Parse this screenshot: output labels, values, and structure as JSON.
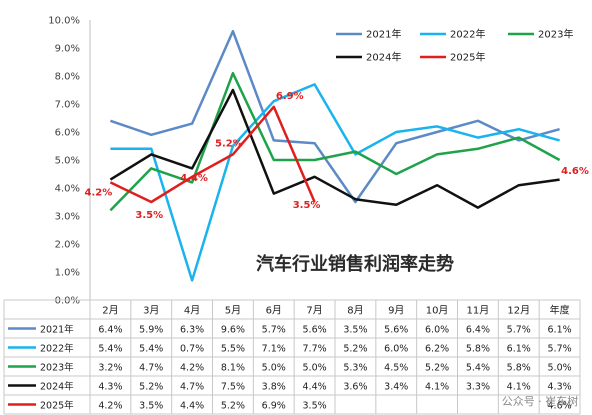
{
  "chart_data": {
    "type": "line",
    "title": "汽车行业销售利润率走势",
    "categories": [
      "2月",
      "3月",
      "4月",
      "5月",
      "6月",
      "7月",
      "8月",
      "9月",
      "10月",
      "11月",
      "12月",
      "年度"
    ],
    "ylim": [
      0,
      10
    ],
    "yticks": [
      "0.0%",
      "1.0%",
      "2.0%",
      "3.0%",
      "4.0%",
      "5.0%",
      "6.0%",
      "7.0%",
      "8.0%",
      "9.0%",
      "10.0%"
    ],
    "grid": false,
    "legend_position": "top-right",
    "series": [
      {
        "name": "2021年",
        "color": "#5b8ac7",
        "values": [
          6.4,
          5.9,
          6.3,
          9.6,
          5.7,
          5.6,
          3.5,
          5.6,
          6.0,
          6.4,
          5.7,
          6.1
        ],
        "labels": [
          "6.4%",
          "5.9%",
          "6.3%",
          "9.6%",
          "5.7%",
          "5.6%",
          "3.5%",
          "5.6%",
          "6.0%",
          "6.4%",
          "5.7%",
          "6.1%"
        ]
      },
      {
        "name": "2022年",
        "color": "#19b3ef",
        "values": [
          5.4,
          5.4,
          0.7,
          5.5,
          7.1,
          7.7,
          5.2,
          6.0,
          6.2,
          5.8,
          6.1,
          5.7
        ],
        "labels": [
          "5.4%",
          "5.4%",
          "0.7%",
          "5.5%",
          "7.1%",
          "7.7%",
          "5.2%",
          "6.0%",
          "6.2%",
          "5.8%",
          "6.1%",
          "5.7%"
        ]
      },
      {
        "name": "2023年",
        "color": "#1fa34a",
        "values": [
          3.2,
          4.7,
          4.2,
          8.1,
          5.0,
          5.0,
          5.3,
          4.5,
          5.2,
          5.4,
          5.8,
          5.0
        ],
        "labels": [
          "3.2%",
          "4.7%",
          "4.2%",
          "8.1%",
          "5.0%",
          "5.0%",
          "5.3%",
          "4.5%",
          "5.2%",
          "5.4%",
          "5.8%",
          "5.0%"
        ]
      },
      {
        "name": "2024年",
        "color": "#111111",
        "values": [
          4.3,
          5.2,
          4.7,
          7.5,
          3.8,
          4.4,
          3.6,
          3.4,
          4.1,
          3.3,
          4.1,
          4.3
        ],
        "labels": [
          "4.3%",
          "5.2%",
          "4.7%",
          "7.5%",
          "3.8%",
          "4.4%",
          "3.6%",
          "3.4%",
          "4.1%",
          "3.3%",
          "4.1%",
          "4.3%"
        ]
      },
      {
        "name": "2025年",
        "color": "#e01e1e",
        "values": [
          4.2,
          3.5,
          4.4,
          5.2,
          6.9,
          3.5,
          null,
          null,
          null,
          null,
          null,
          4.6
        ],
        "labels": [
          "4.2%",
          "3.5%",
          "4.4%",
          "5.2%",
          "6.9%",
          "3.5%",
          "",
          "",
          "",
          "",
          "",
          "4.6%"
        ]
      }
    ],
    "annotations": [
      {
        "text": "4.2%"
      },
      {
        "text": "3.5%"
      },
      {
        "text": "4.4%"
      },
      {
        "text": "5.2%"
      },
      {
        "text": "6.9%"
      },
      {
        "text": "3.5%"
      },
      {
        "text": "4.6%"
      }
    ]
  },
  "watermark": "公众号 · 崔东树"
}
